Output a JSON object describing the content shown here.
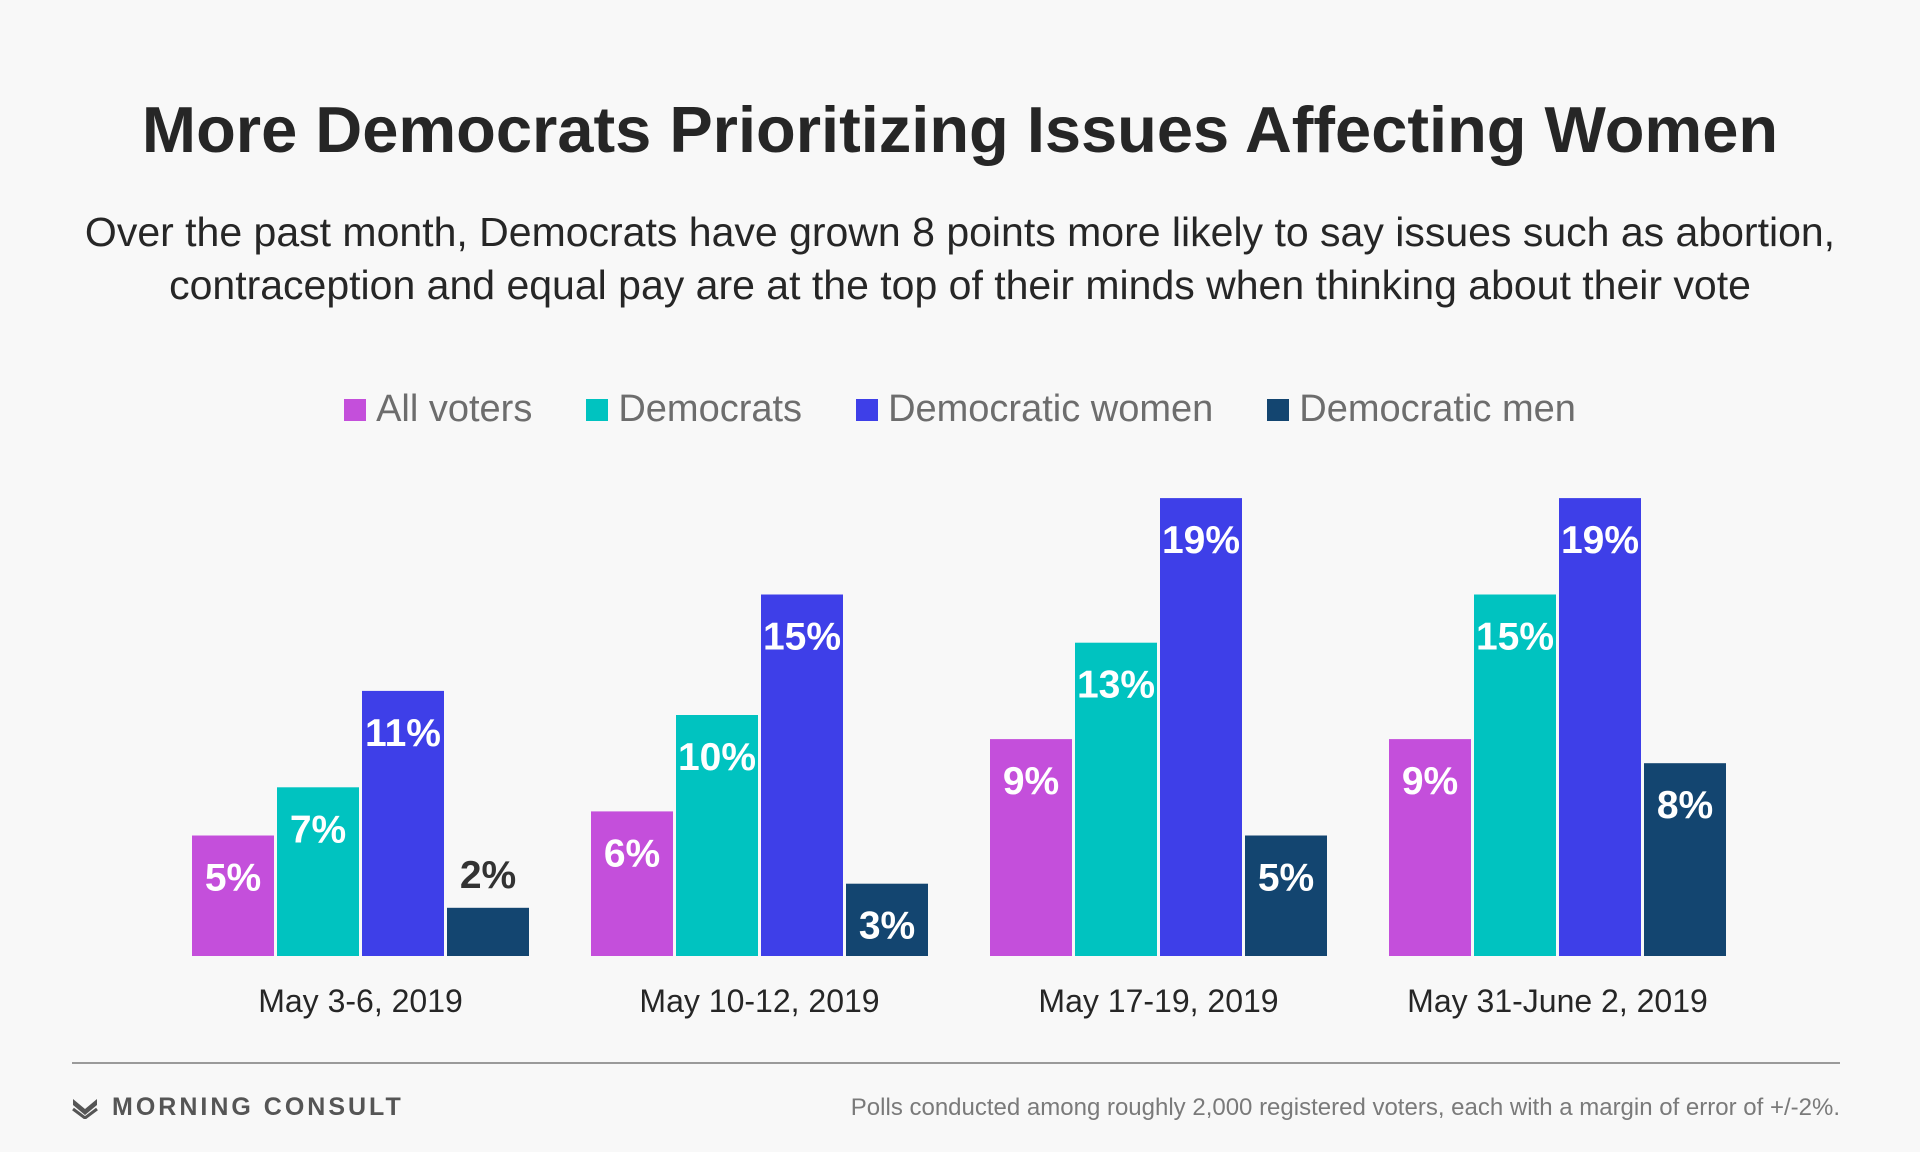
{
  "chart_data": {
    "type": "bar",
    "title": "More Democrats Prioritizing Issues Affecting Women",
    "subtitle_lines": [
      "Over the past month, Democrats have grown 8 points more likely to say issues such as abortion,",
      "contraception and equal pay are at the top of their minds when thinking about their vote"
    ],
    "categories": [
      "May 3-6, 2019",
      "May 10-12, 2019",
      "May 17-19, 2019",
      "May 31-June 2, 2019"
    ],
    "series": [
      {
        "name": "All voters",
        "color": "#c44fdb",
        "values": [
          5,
          6,
          9,
          9
        ],
        "labels": [
          "5%",
          "6%",
          "9%",
          "9%"
        ]
      },
      {
        "name": "Democrats",
        "color": "#00c3c0",
        "values": [
          7,
          10,
          13,
          15
        ],
        "labels": [
          "7%",
          "10%",
          "13%",
          "15%"
        ]
      },
      {
        "name": "Democratic women",
        "color": "#3e3fe8",
        "values": [
          11,
          15,
          19,
          19
        ],
        "labels": [
          "11%",
          "15%",
          "19%",
          "19%"
        ]
      },
      {
        "name": "Democratic men",
        "color": "#134570",
        "values": [
          2,
          3,
          5,
          8
        ],
        "labels": [
          "2%",
          "3%",
          "5%",
          "8%"
        ]
      }
    ],
    "ylim": [
      0,
      19
    ],
    "legend_position": "top-center",
    "grid": false
  },
  "footer": {
    "brand": "MORNING CONSULT",
    "note": "Polls conducted among roughly 2,000 registered voters, each with a margin of error of +/-2%."
  }
}
